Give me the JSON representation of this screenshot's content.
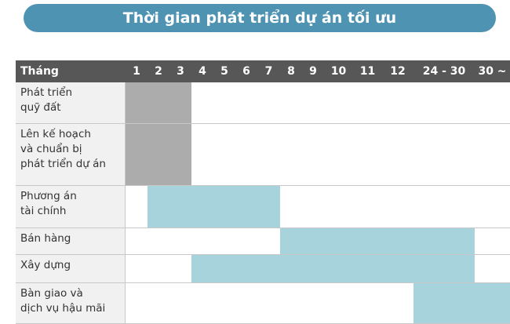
{
  "header": {
    "title": "Thời gian phát triển dự án tối ưu"
  },
  "table": {
    "corner": "Tháng",
    "columns": [
      "1",
      "2",
      "3",
      "4",
      "5",
      "6",
      "7",
      "8",
      "9",
      "10",
      "11",
      "12",
      "24 - 30",
      "30 ~"
    ],
    "rows": [
      {
        "label": "Phát triển\nquỹ đất",
        "start": 0,
        "end": 2,
        "color": "#acacac"
      },
      {
        "label": "Lên kế hoạch\nvà chuẩn bị\nphát triển dự án",
        "start": 0,
        "end": 2,
        "color": "#acacac"
      },
      {
        "label": "Phương án\ntài chính",
        "start": 1,
        "end": 6,
        "color": "#a7d3dd"
      },
      {
        "label": "Bán hàng",
        "start": 7,
        "end": 12,
        "color": "#a7d3dd"
      },
      {
        "label": "Xây dựng",
        "start": 3,
        "end": 12,
        "color": "#a7d3dd"
      },
      {
        "label": "Bàn giao và\ndịch vụ hậu mãi",
        "start": 12,
        "end": 13,
        "color": "#a7d3dd"
      }
    ]
  }
}
